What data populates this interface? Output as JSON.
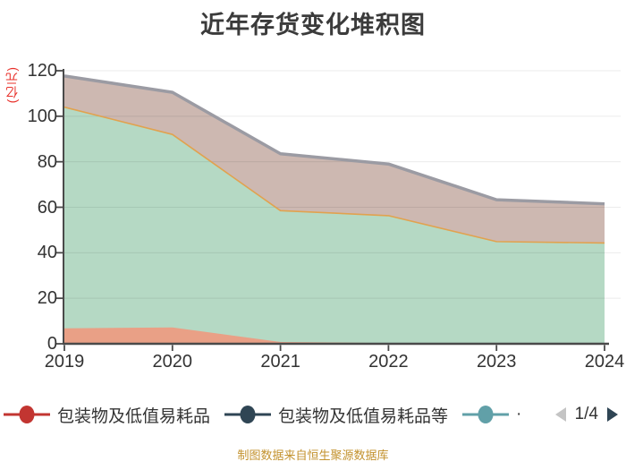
{
  "title": "近年存货变化堆积图",
  "y_axis_unit": "(亿元)",
  "caption": "制图数据来自恒生聚源数据库",
  "colors": {
    "title_text": "#3b3b3b",
    "axis_label": "#333333",
    "axis_line": "#4a4a4a",
    "unit_text": "#e8302a",
    "caption_text": "#c3922e",
    "gridline": "rgba(0,0,0,0.08)"
  },
  "chart_data": {
    "type": "area",
    "stacked": true,
    "title": "近年存货变化堆积图",
    "x": [
      "2019",
      "2020",
      "2021",
      "2022",
      "2023",
      "2024"
    ],
    "ylim": [
      0,
      120
    ],
    "yticks": [
      0,
      20,
      40,
      60,
      80,
      100,
      120
    ],
    "y_unit": "(亿元)",
    "grid": true,
    "legend_position": "bottom",
    "series": [
      {
        "id": "bottom-red-area",
        "values": [
          6.8,
          7.2,
          0.8,
          0.3,
          0.3,
          0.3
        ],
        "cumulative_top": [
          6.8,
          7.2,
          0.8,
          0.3,
          0.3,
          0.3
        ],
        "fill": "#e9a086",
        "stroke": null,
        "stroke_width": 0
      },
      {
        "id": "middle-green-area",
        "values": [
          97.2,
          84.8,
          57.7,
          56.0,
          44.6,
          44.0
        ],
        "cumulative_top": [
          104.0,
          92.0,
          58.5,
          56.3,
          44.9,
          44.3
        ],
        "fill": "#b5d9c4",
        "stroke": "#e1a24f",
        "stroke_width": 1.6
      },
      {
        "id": "top-tan-area",
        "values": [
          13.7,
          18.5,
          25.0,
          22.7,
          18.4,
          17.2
        ],
        "cumulative_top": [
          117.7,
          110.5,
          83.5,
          79.0,
          63.3,
          61.5
        ],
        "fill": "#cdb8b1",
        "stroke": "#9b9ba3",
        "stroke_width": 3.5
      }
    ]
  },
  "legend": {
    "items": [
      {
        "label": "包装物及低值易耗品",
        "color": "#c23531"
      },
      {
        "label": "包装物及低值易耗品等",
        "color": "#2f4554"
      },
      {
        "label": "·",
        "color": "#61a0a8"
      }
    ],
    "pager": {
      "text": "1/4",
      "prev_color": "#c4c4c4",
      "next_color": "#2f4554"
    }
  }
}
